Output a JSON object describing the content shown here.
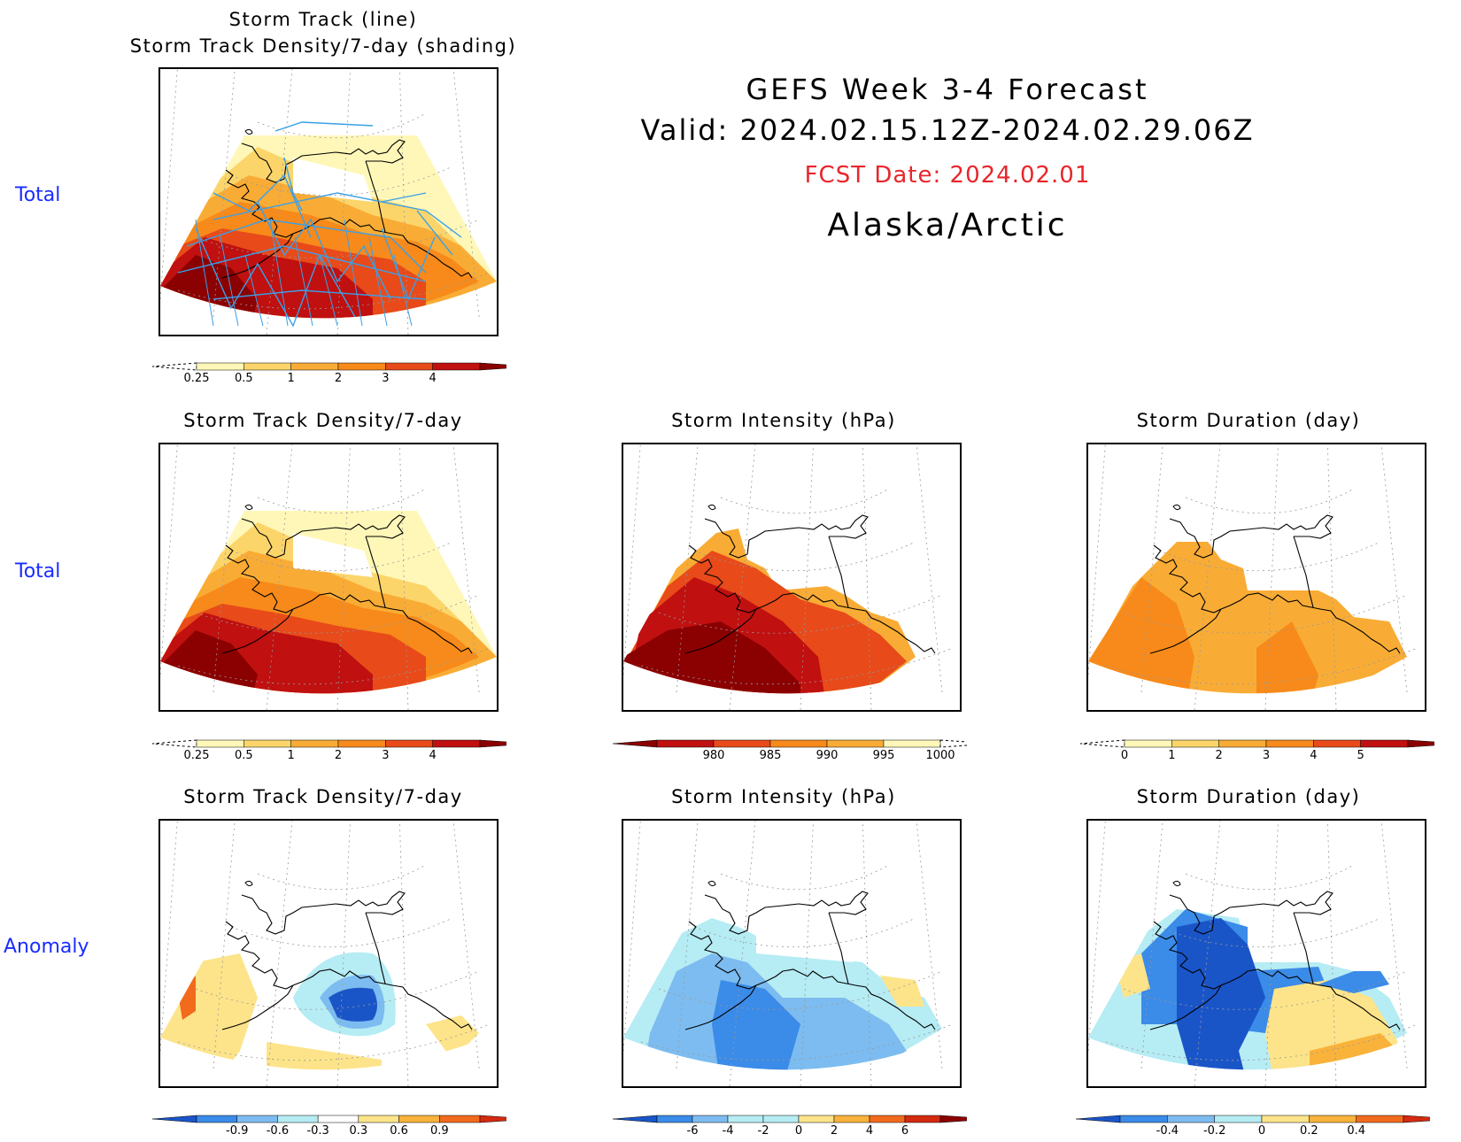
{
  "header": {
    "line1": "GEFS Week 3-4 Forecast",
    "line2": "Valid: 2024.02.15.12Z-2024.02.29.06Z",
    "fcst_date": "FCST Date: 2024.02.01",
    "region": "Alaska/Arctic",
    "fcst_color": "#e8262b"
  },
  "row_labels": [
    "Total",
    "Total",
    "Anomaly"
  ],
  "panels": [
    {
      "title_line1": "Storm Track (line)",
      "title_line2": "Storm Track Density/7-day (shading)"
    },
    {
      "title": "Storm Track Density/7-day"
    },
    {
      "title": "Storm Intensity (hPa)"
    },
    {
      "title": "Storm Duration (day)"
    },
    {
      "title": "Storm Track Density/7-day"
    },
    {
      "title": "Storm Intensity (hPa)"
    },
    {
      "title": "Storm Duration (day)"
    }
  ],
  "colorbars": [
    {
      "labels": [
        "0.25",
        "0.5",
        "1",
        "2",
        "3",
        "4"
      ],
      "colors": [
        "#fff7b8",
        "#fcd56a",
        "#f9ac35",
        "#f78a1a",
        "#e84a1a",
        "#c01010",
        "#8b0000"
      ],
      "left_dashed": true,
      "right_dashed": false
    },
    {
      "labels": [
        "0.25",
        "0.5",
        "1",
        "2",
        "3",
        "4"
      ],
      "colors": [
        "#fff7b8",
        "#fcd56a",
        "#f9ac35",
        "#f78a1a",
        "#e84a1a",
        "#c01010",
        "#8b0000"
      ],
      "left_dashed": true,
      "right_dashed": false
    },
    {
      "labels": [
        "980",
        "985",
        "990",
        "995",
        "1000"
      ],
      "colors": [
        "#8b0000",
        "#c01010",
        "#e84a1a",
        "#f78a1a",
        "#f9ac35",
        "#fff7b8"
      ],
      "left_dashed": false,
      "right_dashed": true
    },
    {
      "labels": [
        "0",
        "1",
        "2",
        "3",
        "4",
        "5"
      ],
      "colors": [
        "#fff7b8",
        "#fcd56a",
        "#f9ac35",
        "#f78a1a",
        "#e84a1a",
        "#c01010",
        "#8b0000"
      ],
      "left_dashed": true,
      "right_dashed": false
    },
    {
      "labels": [
        "-0.9",
        "-0.6",
        "-0.3",
        "0.3",
        "0.6",
        "0.9"
      ],
      "colors": [
        "#1a55c8",
        "#3b8be8",
        "#7dbcf0",
        "#b6ecf4",
        "#ffffff",
        "#fde48a",
        "#f9b23a",
        "#f26a1c",
        "#d42a10"
      ],
      "left_dashed": false,
      "right_dashed": false
    },
    {
      "labels": [
        "-6",
        "-4",
        "-2",
        "0",
        "2",
        "4",
        "6"
      ],
      "colors": [
        "#1a55c8",
        "#3b8be8",
        "#7dbcf0",
        "#b6ecf4",
        "#b6ecf4",
        "#fde48a",
        "#f9b23a",
        "#f26a1c",
        "#d42a10",
        "#8b0000"
      ],
      "left_dashed": false,
      "right_dashed": false
    },
    {
      "labels": [
        "-0.4",
        "-0.2",
        "0",
        "0.2",
        "0.4"
      ],
      "colors": [
        "#1a55c8",
        "#3b8be8",
        "#7dbcf0",
        "#b6ecf4",
        "#fde48a",
        "#f9b23a",
        "#f26a1c",
        "#d42a10"
      ],
      "left_dashed": false,
      "right_dashed": false
    }
  ]
}
